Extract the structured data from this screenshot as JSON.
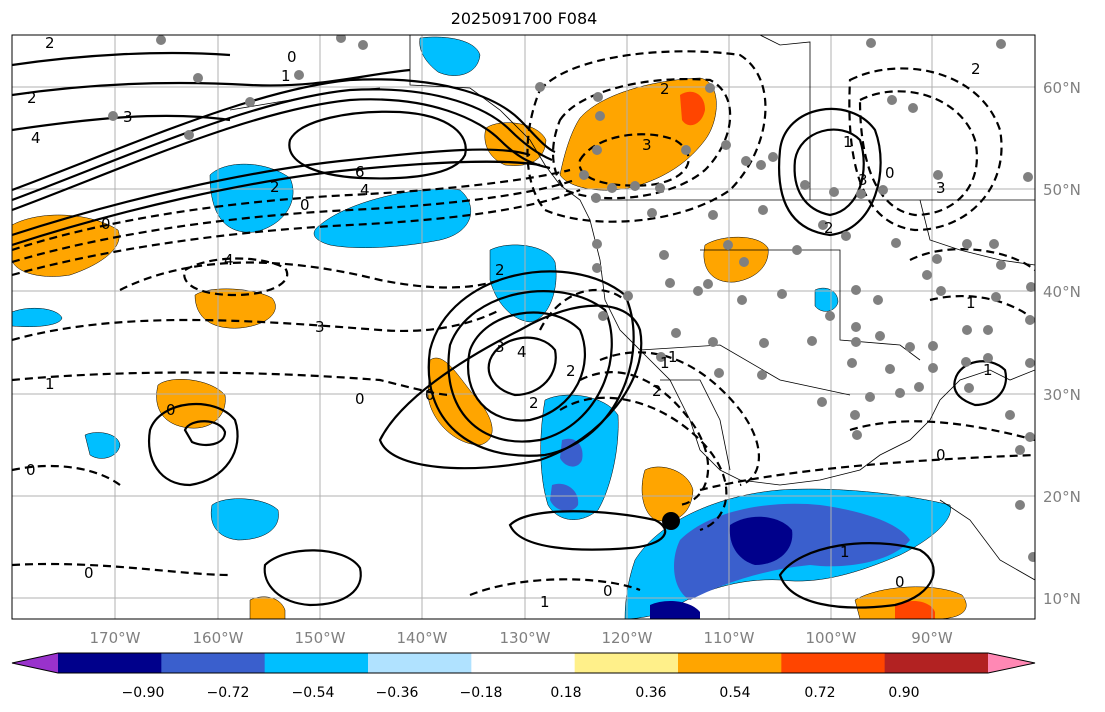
{
  "title": "2025091700 F084",
  "map": {
    "lon_labels": [
      "170°W",
      "160°W",
      "150°W",
      "140°W",
      "130°W",
      "120°W",
      "110°W",
      "100°W",
      "90°W"
    ],
    "lat_labels": [
      "60°N",
      "50°N",
      "40°N",
      "30°N",
      "20°N",
      "10°N"
    ],
    "contour_labels": [
      "2",
      "0",
      "1",
      "2",
      "3",
      "4",
      "6",
      "4",
      "2",
      "0",
      "2",
      "3",
      "2",
      "4",
      "3",
      "1",
      "0",
      "0",
      "3",
      "4",
      "2",
      "0",
      "0",
      "0",
      "1",
      "0",
      "1",
      "2",
      "3",
      "1",
      "3",
      "2",
      "0",
      "2",
      "1",
      "0",
      "1",
      "1",
      "0",
      "0",
      "1",
      "2"
    ]
  },
  "colorbar": {
    "ticks": [
      "−0.90",
      "−0.72",
      "−0.54",
      "−0.36",
      "−0.18",
      "0.18",
      "0.36",
      "0.54",
      "0.72",
      "0.90"
    ],
    "colors": [
      "#9932cc",
      "#00008b",
      "#3a5fcd",
      "#00bfff",
      "#b0e2ff",
      "#ffffff",
      "#fff08a",
      "#ffa500",
      "#ff4500",
      "#b22222",
      "#ff88b4"
    ]
  }
}
